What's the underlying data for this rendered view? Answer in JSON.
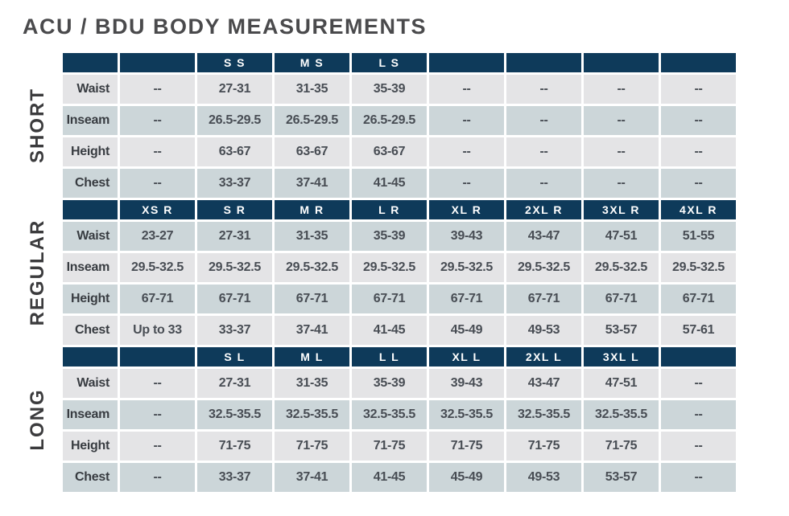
{
  "title": "ACU / BDU BODY MEASUREMENTS",
  "colors": {
    "header_navy": "#0e3a5a",
    "row_light_gray": "#e4e4e6",
    "row_blue_gray": "#ccd6d9",
    "title_text": "#4a4a4c",
    "value_text": "#484d54",
    "header_text": "#ffffff"
  },
  "chart_data": {
    "type": "table",
    "title": "ACU / BDU BODY MEASUREMENTS",
    "sections": [
      {
        "name": "SHORT",
        "headers": [
          "",
          "",
          "S S",
          "M S",
          "L S",
          "",
          "",
          "",
          ""
        ],
        "rows": [
          {
            "label": "Waist",
            "values": [
              "--",
              "27-31",
              "31-35",
              "35-39",
              "--",
              "--",
              "--",
              "--"
            ]
          },
          {
            "label": "Inseam",
            "values": [
              "--",
              "26.5-29.5",
              "26.5-29.5",
              "26.5-29.5",
              "--",
              "--",
              "--",
              "--"
            ]
          },
          {
            "label": "Height",
            "values": [
              "--",
              "63-67",
              "63-67",
              "63-67",
              "--",
              "--",
              "--",
              "--"
            ]
          },
          {
            "label": "Chest",
            "values": [
              "--",
              "33-37",
              "37-41",
              "41-45",
              "--",
              "--",
              "--",
              "--"
            ]
          }
        ]
      },
      {
        "name": "REGULAR",
        "headers": [
          "",
          "XS R",
          "S R",
          "M R",
          "L R",
          "XL R",
          "2XL R",
          "3XL R",
          "4XL R"
        ],
        "rows": [
          {
            "label": "Waist",
            "values": [
              "23-27",
              "27-31",
              "31-35",
              "35-39",
              "39-43",
              "43-47",
              "47-51",
              "51-55"
            ]
          },
          {
            "label": "Inseam",
            "values": [
              "29.5-32.5",
              "29.5-32.5",
              "29.5-32.5",
              "29.5-32.5",
              "29.5-32.5",
              "29.5-32.5",
              "29.5-32.5",
              "29.5-32.5"
            ]
          },
          {
            "label": "Height",
            "values": [
              "67-71",
              "67-71",
              "67-71",
              "67-71",
              "67-71",
              "67-71",
              "67-71",
              "67-71"
            ]
          },
          {
            "label": "Chest",
            "values": [
              "Up to 33",
              "33-37",
              "37-41",
              "41-45",
              "45-49",
              "49-53",
              "53-57",
              "57-61"
            ]
          }
        ]
      },
      {
        "name": "LONG",
        "headers": [
          "",
          "",
          "S L",
          "M L",
          "L L",
          "XL L",
          "2XL L",
          "3XL L",
          ""
        ],
        "rows": [
          {
            "label": "Waist",
            "values": [
              "--",
              "27-31",
              "31-35",
              "35-39",
              "39-43",
              "43-47",
              "47-51",
              "--"
            ]
          },
          {
            "label": "Inseam",
            "values": [
              "--",
              "32.5-35.5",
              "32.5-35.5",
              "32.5-35.5",
              "32.5-35.5",
              "32.5-35.5",
              "32.5-35.5",
              "--"
            ]
          },
          {
            "label": "Height",
            "values": [
              "--",
              "71-75",
              "71-75",
              "71-75",
              "71-75",
              "71-75",
              "71-75",
              "--"
            ]
          },
          {
            "label": "Chest",
            "values": [
              "--",
              "33-37",
              "37-41",
              "41-45",
              "45-49",
              "49-53",
              "53-57",
              "--"
            ]
          }
        ]
      }
    ],
    "measurement_labels": [
      "Waist",
      "Inseam",
      "Height",
      "Chest"
    ],
    "layout_hints": {
      "row_shading_start": [
        "light",
        "blue",
        "light"
      ],
      "label_column_shaded_with_row": true,
      "section_labels_rotated": true
    }
  }
}
